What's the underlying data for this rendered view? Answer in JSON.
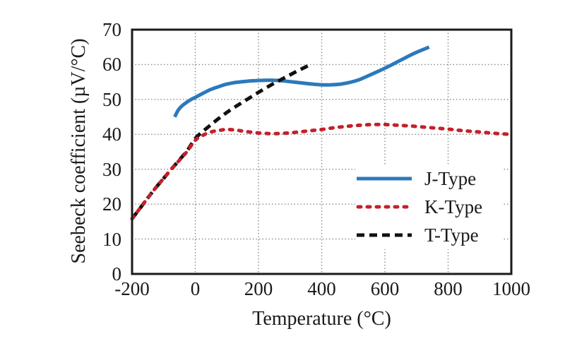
{
  "chart_data": {
    "type": "line",
    "title": "",
    "xlabel": "Temperature (°C)",
    "ylabel": "Seebeck coefficient (µV/°C)",
    "xlim": [
      -200,
      1000
    ],
    "ylim": [
      0,
      70
    ],
    "x_ticks": [
      -200,
      0,
      200,
      400,
      600,
      800,
      1000
    ],
    "y_ticks": [
      0,
      10,
      20,
      30,
      40,
      50,
      60,
      70
    ],
    "grid": "dotted",
    "grid_color": "#8a8a8a",
    "frame_color": "#1a1a1a",
    "legend_position": "inside-lower-right",
    "series": [
      {
        "name": "J-Type",
        "color": "#2B79BC",
        "style": "solid",
        "points": [
          [
            -65,
            45
          ],
          [
            -55,
            46.8
          ],
          [
            -45,
            47.9
          ],
          [
            -30,
            49
          ],
          [
            -15,
            49.9
          ],
          [
            0,
            50.6
          ],
          [
            25,
            51.8
          ],
          [
            50,
            52.9
          ],
          [
            75,
            53.7
          ],
          [
            100,
            54.4
          ],
          [
            130,
            54.9
          ],
          [
            160,
            55.2
          ],
          [
            190,
            55.4
          ],
          [
            220,
            55.5
          ],
          [
            250,
            55.5
          ],
          [
            280,
            55.3
          ],
          [
            310,
            55
          ],
          [
            340,
            54.7
          ],
          [
            370,
            54.4
          ],
          [
            400,
            54.2
          ],
          [
            430,
            54.2
          ],
          [
            460,
            54.4
          ],
          [
            490,
            54.9
          ],
          [
            520,
            55.7
          ],
          [
            550,
            56.9
          ],
          [
            580,
            58.1
          ],
          [
            610,
            59.4
          ],
          [
            640,
            60.8
          ],
          [
            670,
            62.2
          ],
          [
            700,
            63.5
          ],
          [
            740,
            65
          ]
        ]
      },
      {
        "name": "K-Type",
        "color": "#C4202C",
        "style": "dotted",
        "points": [
          [
            -200,
            15.8
          ],
          [
            -175,
            18.8
          ],
          [
            -150,
            21.8
          ],
          [
            -125,
            24.7
          ],
          [
            -100,
            27.4
          ],
          [
            -75,
            30.1
          ],
          [
            -50,
            32.6
          ],
          [
            -25,
            35.2
          ],
          [
            0,
            38.3
          ],
          [
            20,
            39.5
          ],
          [
            40,
            40.4
          ],
          [
            60,
            40.9
          ],
          [
            80,
            41.2
          ],
          [
            100,
            41.4
          ],
          [
            130,
            41.2
          ],
          [
            160,
            40.8
          ],
          [
            200,
            40.4
          ],
          [
            240,
            40.2
          ],
          [
            280,
            40.3
          ],
          [
            320,
            40.6
          ],
          [
            360,
            41
          ],
          [
            400,
            41.4
          ],
          [
            440,
            41.9
          ],
          [
            480,
            42.3
          ],
          [
            520,
            42.6
          ],
          [
            560,
            42.8
          ],
          [
            600,
            42.8
          ],
          [
            640,
            42.6
          ],
          [
            680,
            42.4
          ],
          [
            720,
            42.1
          ],
          [
            760,
            41.8
          ],
          [
            800,
            41.5
          ],
          [
            840,
            41.1
          ],
          [
            880,
            40.8
          ],
          [
            920,
            40.5
          ],
          [
            960,
            40.2
          ],
          [
            995,
            40
          ]
        ]
      },
      {
        "name": "T-Type",
        "color": "#111111",
        "style": "dashed",
        "points": [
          [
            -200,
            15.8
          ],
          [
            -175,
            18.8
          ],
          [
            -150,
            21.8
          ],
          [
            -125,
            24.7
          ],
          [
            -100,
            27.4
          ],
          [
            -75,
            30.1
          ],
          [
            -50,
            32.7
          ],
          [
            -25,
            35.4
          ],
          [
            0,
            38.8
          ],
          [
            25,
            40.9
          ],
          [
            45,
            42.4
          ],
          [
            65,
            43.9
          ],
          [
            85,
            45.3
          ],
          [
            105,
            46.6
          ],
          [
            130,
            48.1
          ],
          [
            155,
            49.5
          ],
          [
            180,
            50.9
          ],
          [
            205,
            52.3
          ],
          [
            235,
            53.9
          ],
          [
            265,
            55.4
          ],
          [
            295,
            56.8
          ],
          [
            320,
            58
          ],
          [
            340,
            58.9
          ],
          [
            360,
            59.8
          ]
        ]
      }
    ]
  }
}
